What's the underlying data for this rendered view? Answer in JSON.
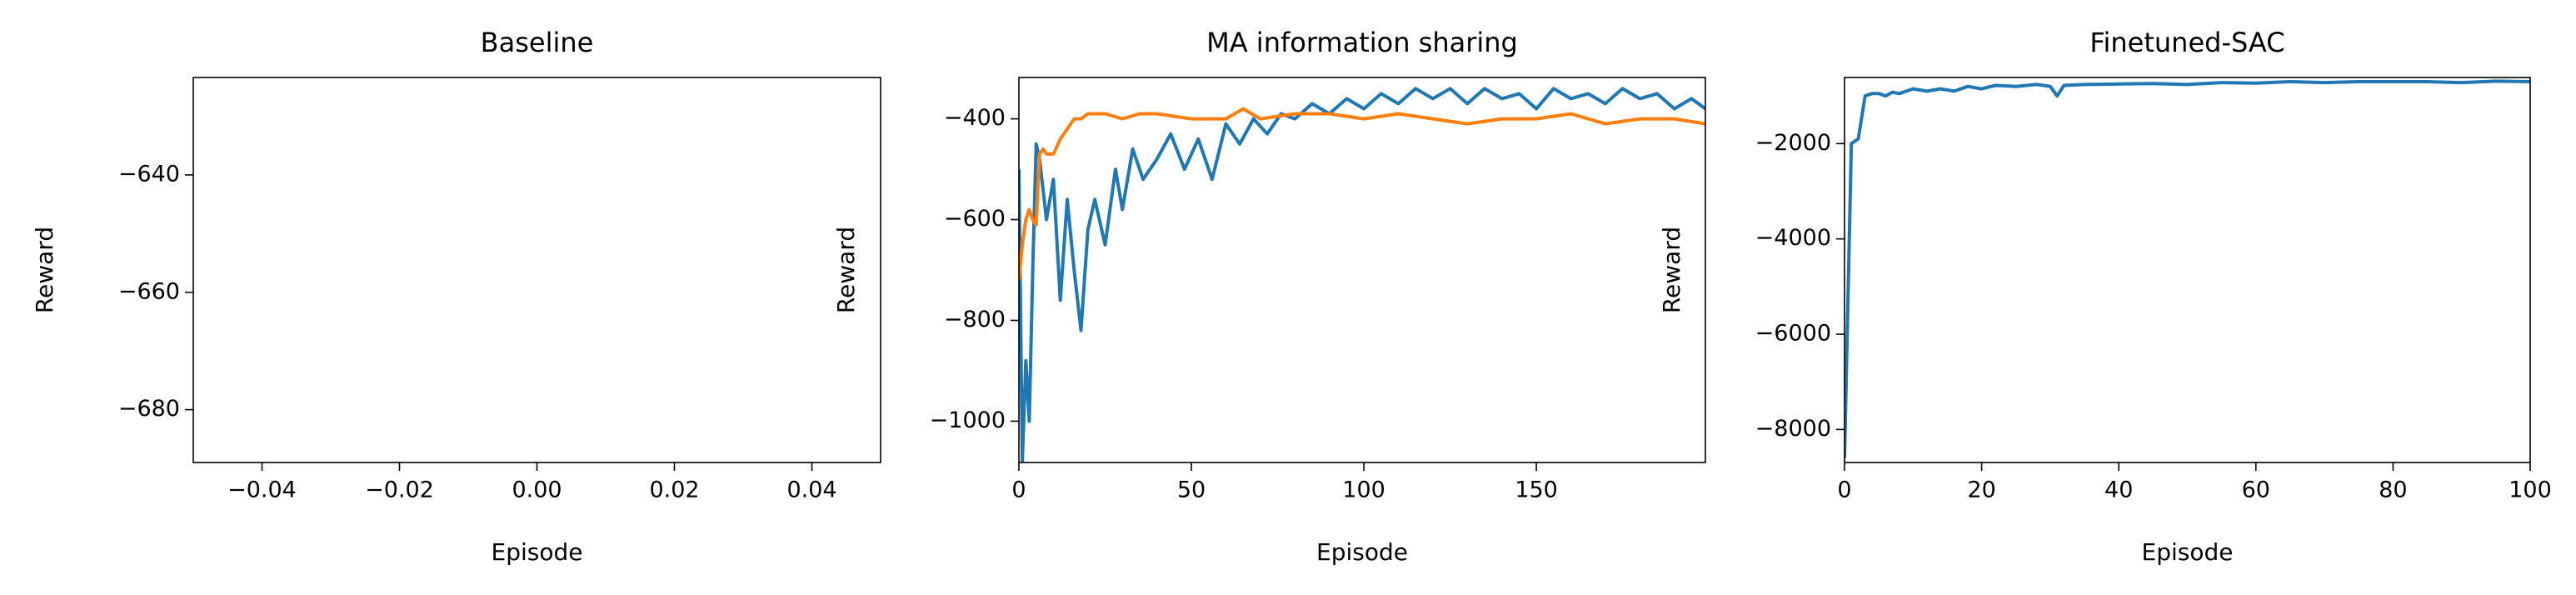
{
  "chart_data": [
    {
      "type": "line",
      "title": "Baseline",
      "x_label": "Episode",
      "y_label": "Reward",
      "xlim": [
        -0.05,
        0.05
      ],
      "xticks": [
        {
          "value": -0.04,
          "label": "−0.04"
        },
        {
          "value": -0.02,
          "label": "−0.02"
        },
        {
          "value": 0,
          "label": "0.00"
        },
        {
          "value": 0.02,
          "label": "0.02"
        },
        {
          "value": 0.04,
          "label": "0.04"
        }
      ],
      "ylim": [
        -689,
        -623.4
      ],
      "yticks": [
        {
          "value": -640,
          "label": "−640"
        },
        {
          "value": -660,
          "label": "−660"
        },
        {
          "value": -680,
          "label": "−680"
        }
      ],
      "series": []
    },
    {
      "type": "line",
      "title": "MA information sharing",
      "x_label": "Episode",
      "y_label": "Reward",
      "xlim": [
        0,
        199
      ],
      "xticks": [
        0,
        50,
        100,
        150
      ],
      "ylim": [
        -1082,
        -318
      ],
      "yticks": [
        {
          "value": -1000,
          "label": "−1000"
        },
        {
          "value": -800,
          "label": "−800"
        },
        {
          "value": -600,
          "label": "−600"
        },
        {
          "value": -400,
          "label": "−400"
        }
      ],
      "series": [
        {
          "color": "#1f77b4",
          "x": [
            0,
            1,
            2,
            3,
            4,
            5,
            6,
            8,
            10,
            12,
            14,
            16,
            18,
            20,
            22,
            25,
            28,
            30,
            33,
            36,
            40,
            44,
            48,
            52,
            56,
            60,
            64,
            68,
            72,
            76,
            80,
            85,
            90,
            95,
            100,
            105,
            110,
            115,
            120,
            125,
            130,
            135,
            140,
            145,
            150,
            155,
            160,
            165,
            170,
            175,
            180,
            185,
            190,
            195,
            199
          ],
          "values": [
            -500,
            -1080,
            -880,
            -1000,
            -700,
            -450,
            -480,
            -600,
            -520,
            -760,
            -560,
            -700,
            -820,
            -620,
            -560,
            -650,
            -500,
            -580,
            -460,
            -520,
            -480,
            -430,
            -500,
            -440,
            -520,
            -410,
            -450,
            -400,
            -430,
            -390,
            -400,
            -370,
            -390,
            -360,
            -380,
            -350,
            -370,
            -340,
            -360,
            -340,
            -370,
            -340,
            -360,
            -350,
            -380,
            -340,
            -360,
            -350,
            -370,
            -340,
            -360,
            -350,
            -380,
            -360,
            -380
          ]
        },
        {
          "color": "#ff7f0e",
          "x": [
            0,
            1,
            2,
            3,
            4,
            5,
            6,
            7,
            8,
            10,
            12,
            14,
            16,
            18,
            20,
            25,
            30,
            35,
            40,
            50,
            60,
            65,
            70,
            80,
            90,
            100,
            110,
            120,
            130,
            140,
            150,
            160,
            170,
            180,
            190,
            199
          ],
          "values": [
            -720,
            -650,
            -600,
            -580,
            -600,
            -610,
            -470,
            -460,
            -470,
            -470,
            -440,
            -420,
            -400,
            -400,
            -390,
            -390,
            -400,
            -390,
            -390,
            -400,
            -400,
            -380,
            -400,
            -390,
            -390,
            -400,
            -390,
            -400,
            -410,
            -400,
            -400,
            -390,
            -410,
            -400,
            -400,
            -410
          ]
        }
      ]
    },
    {
      "type": "line",
      "title": "Finetuned-SAC",
      "x_label": "Episode",
      "y_label": "Reward",
      "xlim": [
        0,
        100
      ],
      "xticks": [
        0,
        20,
        40,
        60,
        80,
        100
      ],
      "ylim": [
        -8693,
        -613
      ],
      "yticks": [
        {
          "value": -2000,
          "label": "−2000"
        },
        {
          "value": -4000,
          "label": "−4000"
        },
        {
          "value": -6000,
          "label": "−6000"
        },
        {
          "value": -8000,
          "label": "−8000"
        }
      ],
      "series": [
        {
          "color": "#1f77b4",
          "x": [
            0,
            1,
            2,
            3,
            4,
            5,
            6,
            7,
            8,
            10,
            12,
            14,
            16,
            18,
            20,
            22,
            25,
            28,
            30,
            31,
            32,
            35,
            40,
            45,
            50,
            55,
            60,
            65,
            70,
            75,
            80,
            85,
            90,
            95,
            100
          ],
          "values": [
            -8600,
            -2000,
            -1900,
            -1000,
            -950,
            -950,
            -1000,
            -920,
            -950,
            -850,
            -900,
            -850,
            -900,
            -800,
            -850,
            -780,
            -800,
            -760,
            -800,
            -1000,
            -780,
            -760,
            -750,
            -740,
            -760,
            -720,
            -730,
            -700,
            -720,
            -700,
            -700,
            -700,
            -720,
            -690,
            -700
          ]
        }
      ]
    }
  ]
}
